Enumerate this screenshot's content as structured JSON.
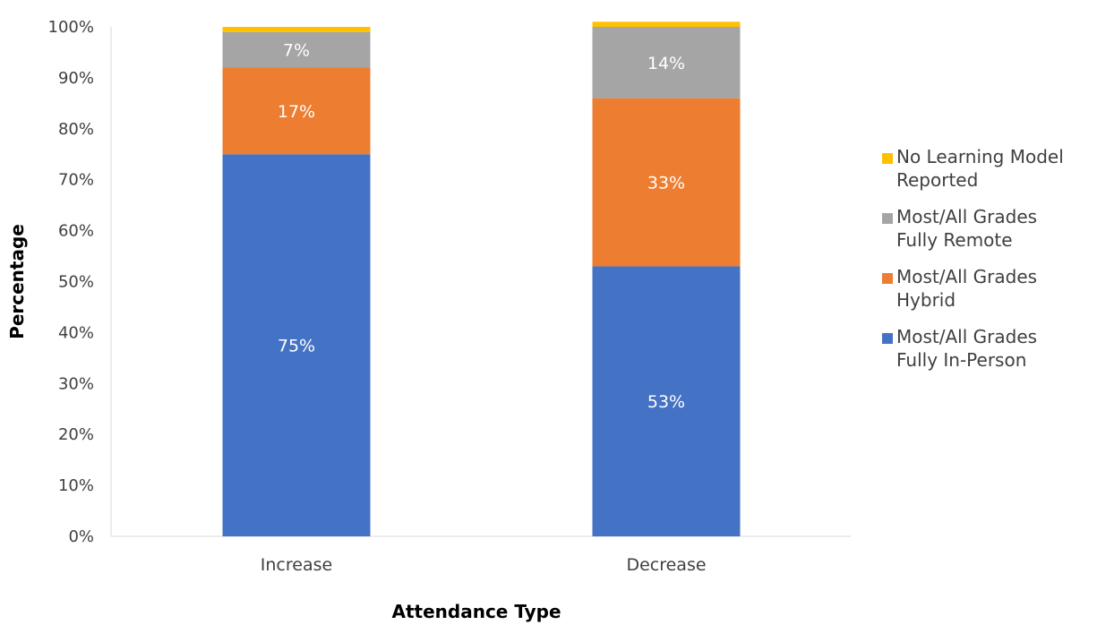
{
  "chart_data": {
    "type": "bar",
    "stacked": true,
    "categories": [
      "Increase",
      "Decrease"
    ],
    "series": [
      {
        "name": "Most/All Grades Fully In-Person",
        "values": [
          75,
          53
        ],
        "color": "#4472C4",
        "labels": [
          "75%",
          "53%"
        ]
      },
      {
        "name": "Most/All Grades Hybrid",
        "values": [
          17,
          33
        ],
        "color": "#ED7D31",
        "labels": [
          "17%",
          "33%"
        ]
      },
      {
        "name": "Most/All Grades Fully Remote",
        "values": [
          7,
          14
        ],
        "color": "#A5A5A5",
        "labels": [
          "7%",
          "14%"
        ]
      },
      {
        "name": "No Learning Model Reported",
        "values": [
          1,
          1
        ],
        "color": "#FFC000",
        "labels": [
          "",
          ""
        ]
      }
    ],
    "legend_lines": {
      "No Learning Model Reported": [
        "No Learning Model",
        "Reported"
      ],
      "Most/All Grades Fully Remote": [
        "Most/All Grades",
        "Fully Remote"
      ],
      "Most/All Grades Hybrid": [
        "Most/All Grades",
        "Hybrid"
      ],
      "Most/All Grades Fully In-Person": [
        "Most/All Grades",
        "Fully In-Person"
      ]
    },
    "xlabel": "Attendance Type",
    "ylabel": "Percentage",
    "ylim": [
      0,
      100
    ],
    "yticks": [
      0,
      10,
      20,
      30,
      40,
      50,
      60,
      70,
      80,
      90,
      100
    ],
    "ytick_suffix": "%",
    "grid": false,
    "legend_position": "right"
  }
}
